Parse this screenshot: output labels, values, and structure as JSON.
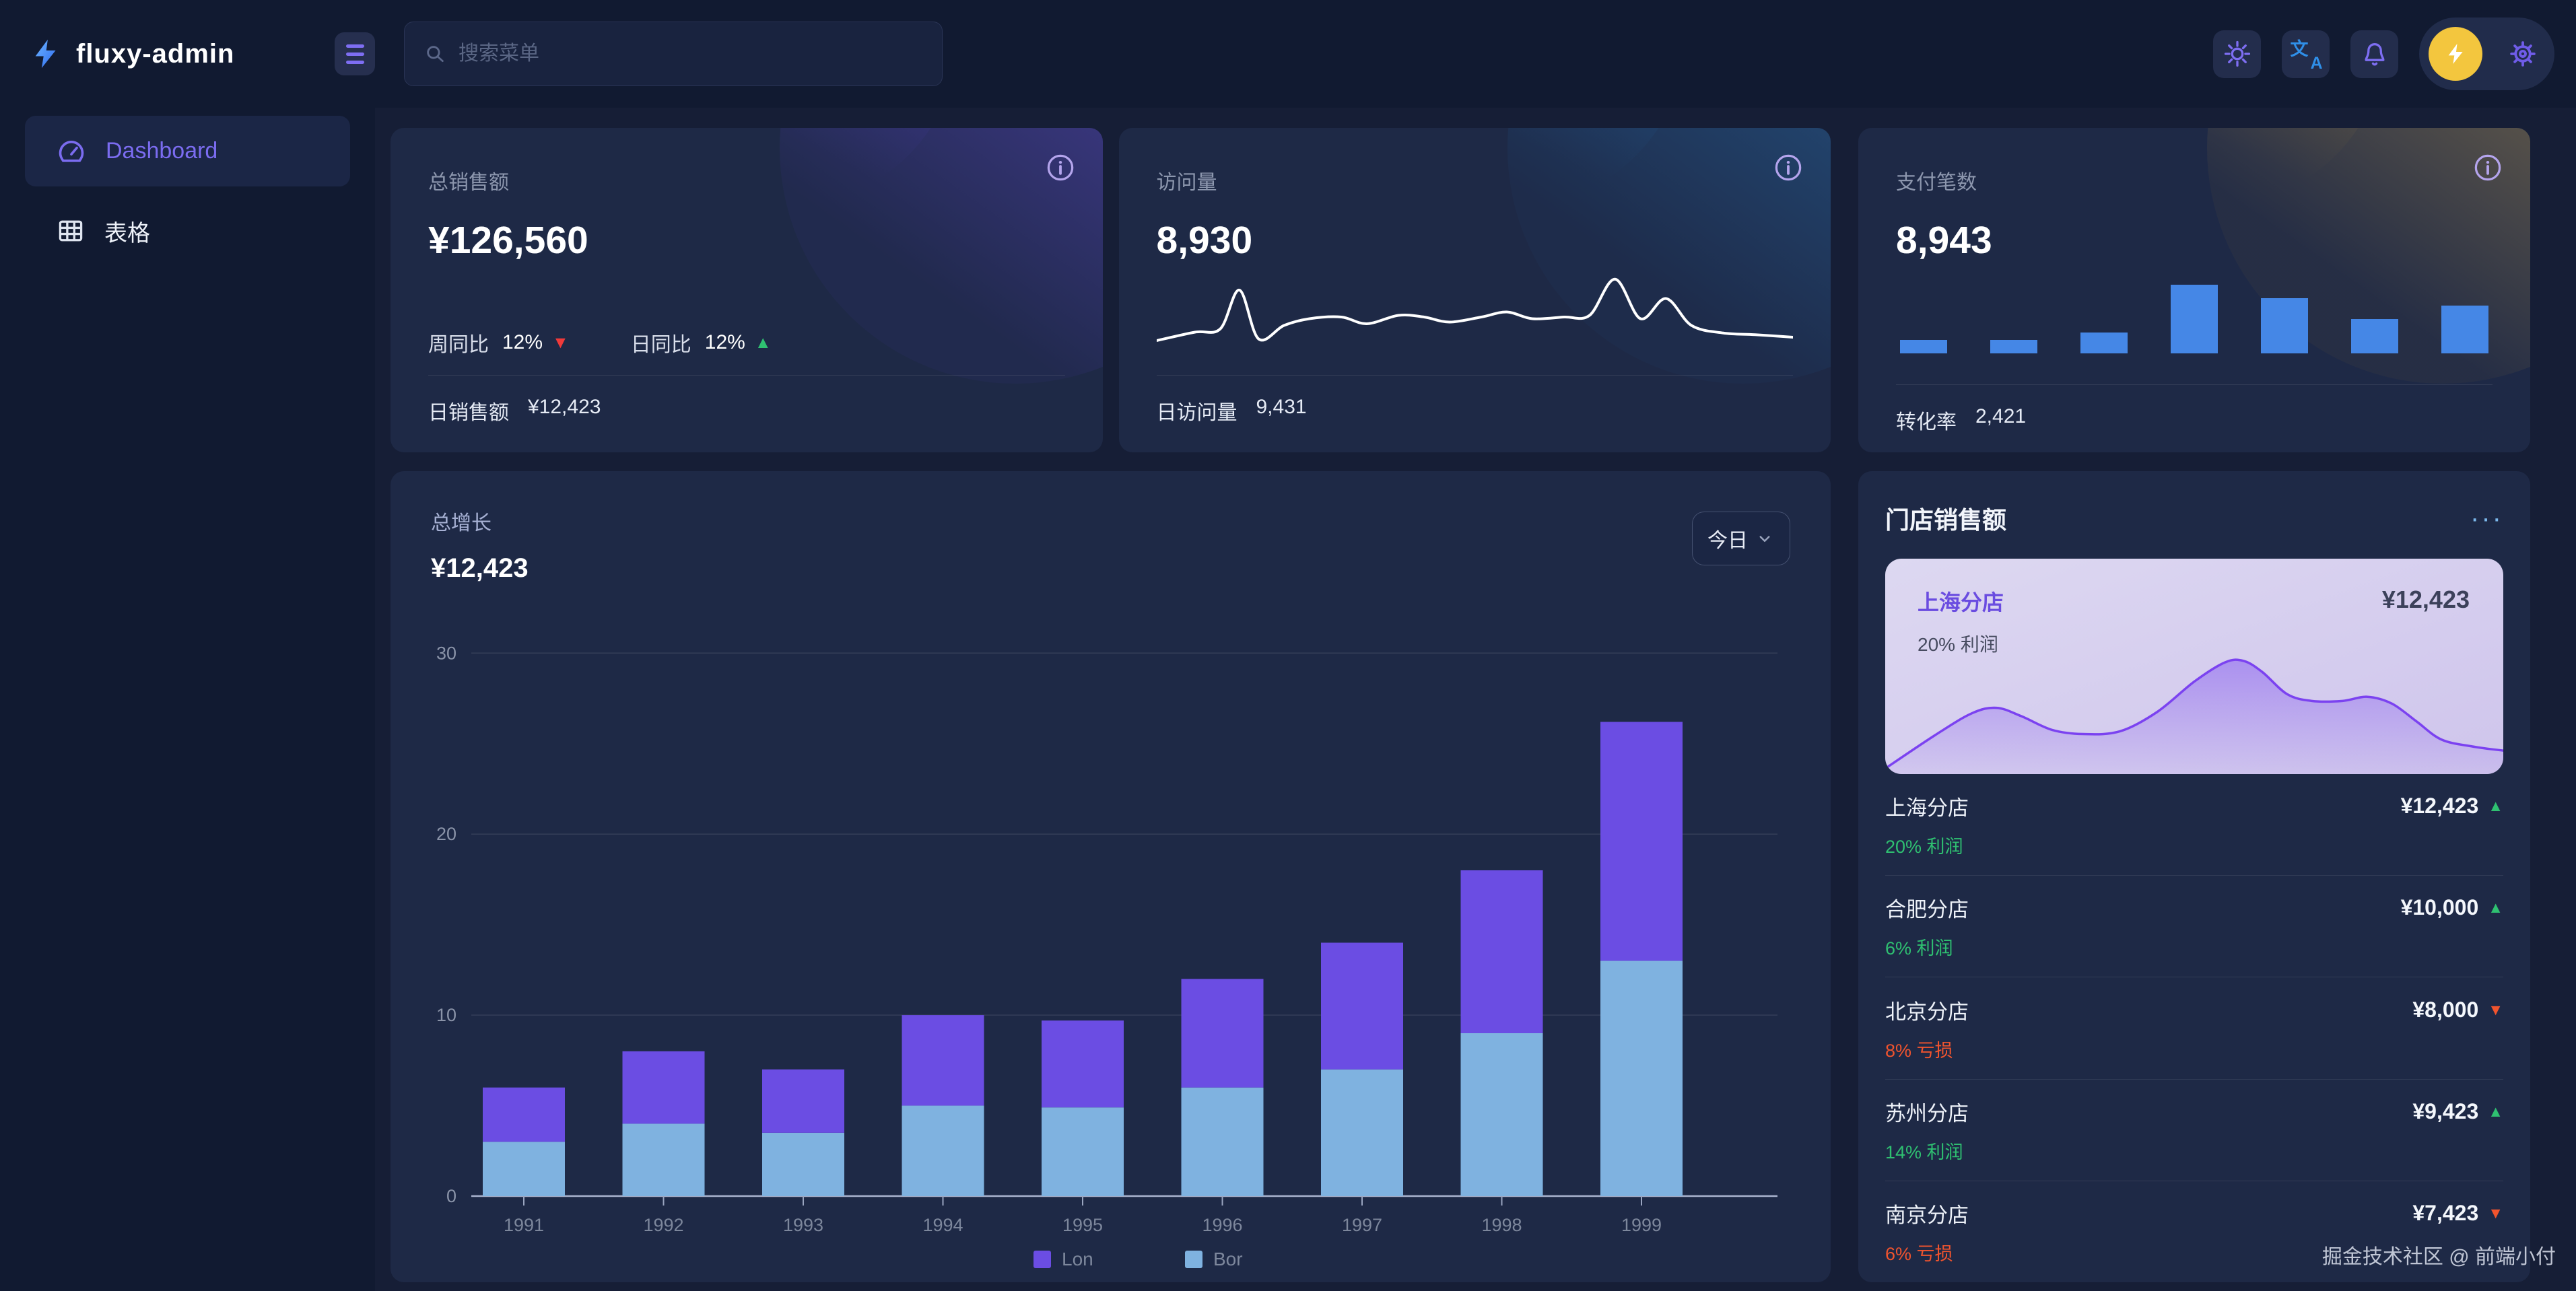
{
  "app": {
    "title": "fluxy-admin"
  },
  "header": {
    "search": {
      "placeholder": "搜索菜单"
    }
  },
  "sidebar": {
    "items": [
      {
        "label": "Dashboard",
        "active": true
      },
      {
        "label": "表格",
        "active": false
      }
    ]
  },
  "stats": {
    "sales": {
      "title": "总销售额",
      "value": "¥126,560",
      "trends": [
        {
          "label": "周同比",
          "value": "12%",
          "direction": "down"
        },
        {
          "label": "日同比",
          "value": "12%",
          "direction": "up"
        }
      ],
      "footer_label": "日销售额",
      "footer_value": "¥12,423"
    },
    "visits": {
      "title": "访问量",
      "value": "8,930",
      "footer_label": "日访问量",
      "footer_value": "9,431"
    },
    "payments": {
      "title": "支付笔数",
      "value": "8,943",
      "footer_label": "转化率",
      "footer_value": "2,421"
    }
  },
  "growth": {
    "title": "总增长",
    "value": "¥12,423",
    "range": "今日"
  },
  "stores": {
    "title": "门店销售额",
    "more": "···",
    "featured": {
      "name": "上海分店",
      "value": "¥12,423",
      "note": "20% 利润"
    },
    "rows": [
      {
        "name": "上海分店",
        "value": "¥12,423",
        "direction": "up",
        "note": "20% 利润"
      },
      {
        "name": "合肥分店",
        "value": "¥10,000",
        "direction": "up",
        "note": "6% 利润"
      },
      {
        "name": "北京分店",
        "value": "¥8,000",
        "direction": "down",
        "note": "8% 亏损"
      },
      {
        "name": "苏州分店",
        "value": "¥9,423",
        "direction": "up",
        "note": "14% 利润"
      },
      {
        "name": "南京分店",
        "value": "¥7,423",
        "direction": "down",
        "note": "6% 亏损"
      }
    ]
  },
  "watermark": "掘金技术社区 @ 前端小付",
  "colors": {
    "purple_bar": "#6B4DE3",
    "blue_bar": "#7FB2E0",
    "mini_bar_blue": "#4587E6",
    "green": "#2FC071",
    "red": "#F03A3A",
    "orange": "#F1542E",
    "accent_purple": "#7B6CF0",
    "area_purple": "#7B42F0"
  },
  "chart_data": [
    {
      "id": "growth-stacked-bar",
      "type": "bar",
      "stacked": true,
      "title": "总增长",
      "categories": [
        "1991",
        "1992",
        "1993",
        "1994",
        "1995",
        "1996",
        "1997",
        "1998",
        "1999"
      ],
      "series": [
        {
          "name": "Lon",
          "color": "#6B4DE3",
          "values": [
            3,
            4,
            3.5,
            5,
            4.8,
            6,
            7,
            9,
            13.2
          ]
        },
        {
          "name": "Bor",
          "color": "#7FB2E0",
          "values": [
            3,
            4,
            3.5,
            5,
            4.9,
            6,
            7,
            9,
            13
          ]
        }
      ],
      "xlabel": "",
      "ylabel": "",
      "ylim": [
        0,
        30
      ],
      "yticks": [
        0,
        10,
        20,
        30
      ],
      "grid": true,
      "legend_position": "bottom"
    },
    {
      "id": "visits-sparkline",
      "type": "line",
      "color": "#ffffff",
      "points": [
        [
          0,
          88
        ],
        [
          6,
          78
        ],
        [
          10,
          74
        ],
        [
          13,
          28
        ],
        [
          16,
          86
        ],
        [
          20,
          70
        ],
        [
          24,
          62
        ],
        [
          29,
          60
        ],
        [
          33,
          68
        ],
        [
          38,
          58
        ],
        [
          42,
          60
        ],
        [
          46,
          66
        ],
        [
          51,
          60
        ],
        [
          55,
          54
        ],
        [
          59,
          62
        ],
        [
          64,
          60
        ],
        [
          68,
          58
        ],
        [
          72,
          15
        ],
        [
          76,
          62
        ],
        [
          80,
          38
        ],
        [
          84,
          70
        ],
        [
          89,
          79
        ],
        [
          94,
          81
        ],
        [
          100,
          84
        ]
      ]
    },
    {
      "id": "payments-mini-bar",
      "type": "bar",
      "color": "#4587E6",
      "values": [
        2,
        2,
        3,
        10,
        8,
        5,
        7
      ],
      "ylim": [
        0,
        10
      ]
    },
    {
      "id": "store-area",
      "type": "area",
      "line_color": "#7B42F0",
      "points": [
        [
          0,
          96
        ],
        [
          8,
          72
        ],
        [
          14,
          56
        ],
        [
          18,
          52
        ],
        [
          22,
          58
        ],
        [
          27,
          68
        ],
        [
          32,
          71
        ],
        [
          38,
          69
        ],
        [
          44,
          55
        ],
        [
          50,
          33
        ],
        [
          55,
          19
        ],
        [
          58,
          18
        ],
        [
          61,
          26
        ],
        [
          65,
          42
        ],
        [
          69,
          47
        ],
        [
          74,
          47
        ],
        [
          78,
          44
        ],
        [
          82,
          49
        ],
        [
          86,
          62
        ],
        [
          90,
          75
        ],
        [
          95,
          80
        ],
        [
          100,
          83
        ]
      ]
    }
  ]
}
